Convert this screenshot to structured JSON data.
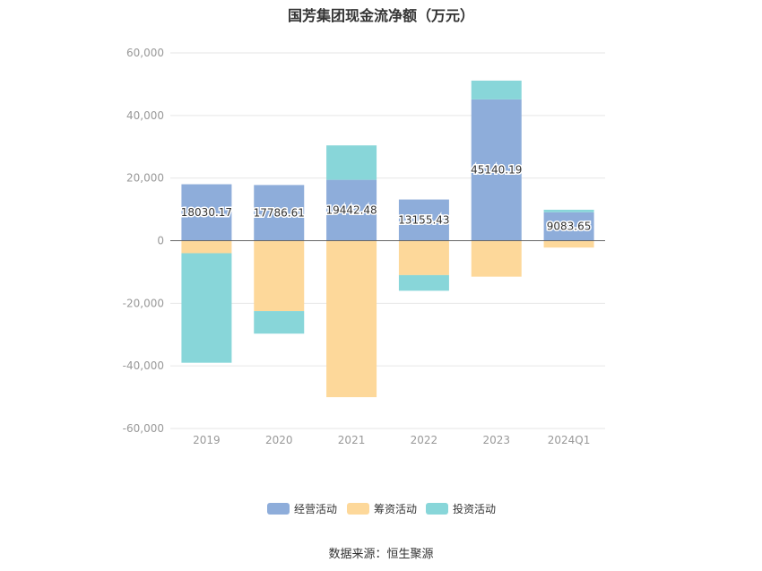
{
  "chart_data": {
    "type": "bar",
    "stacked": true,
    "title": "国芳集团现金流净额（万元）",
    "categories": [
      "2019",
      "2020",
      "2021",
      "2022",
      "2023",
      "2024Q1"
    ],
    "series": [
      {
        "name": "经营活动",
        "color": "#8eadda",
        "values": [
          18030.17,
          17786.61,
          19442.48,
          13155.43,
          45140.19,
          9083.65
        ]
      },
      {
        "name": "筹资活动",
        "color": "#fdd89a",
        "values": [
          -4000,
          -22500,
          -50000,
          -11000,
          -11500,
          -2200
        ]
      },
      {
        "name": "投资活动",
        "color": "#88d6d9",
        "values": [
          -35000,
          -7200,
          11000,
          -5000,
          6000,
          800
        ]
      }
    ],
    "data_labels": [
      "18030.17",
      "17786.61",
      "19442.48",
      "13155.43",
      "45140.19",
      "9083.65"
    ],
    "yticks": [
      "60,000",
      "40,000",
      "20,000",
      "0",
      "-20,000",
      "-40,000",
      "-60,000"
    ],
    "ylim": [
      -60000,
      60000
    ],
    "grid": true,
    "legend_position": "bottom"
  },
  "source": "数据来源：恒生聚源"
}
